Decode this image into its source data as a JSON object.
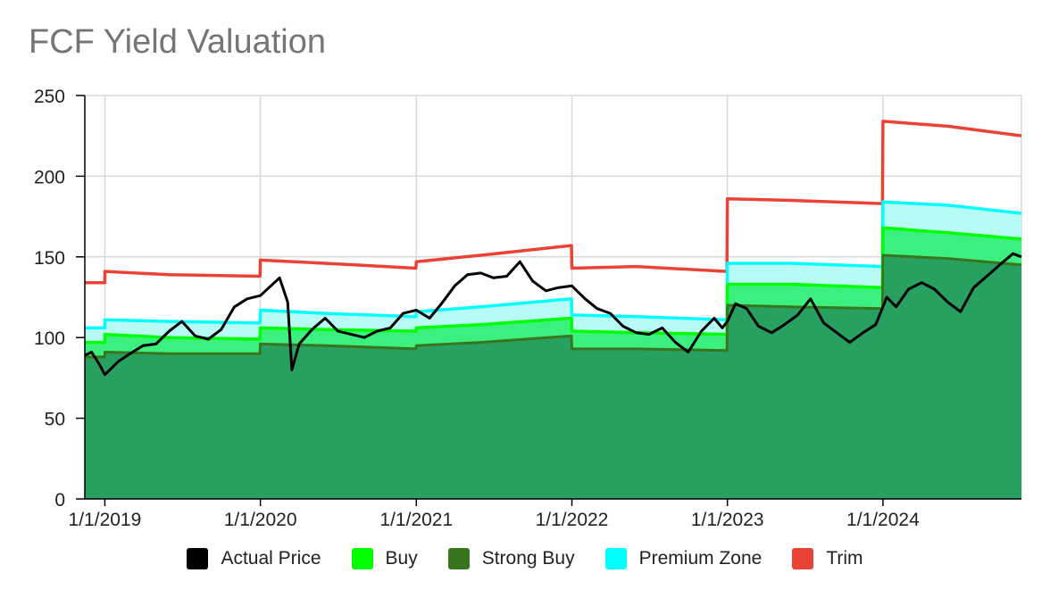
{
  "chart_data": {
    "type": "area",
    "title": "FCF Yield Valuation",
    "xlabel": "",
    "ylabel": "",
    "ylim": [
      0,
      250
    ],
    "yticks": [
      0,
      50,
      100,
      150,
      200,
      250
    ],
    "xlim": [
      "2018-11-15",
      "2024-11-21"
    ],
    "xticks": [
      "1/1/2019",
      "1/1/2020",
      "1/1/2021",
      "1/1/2022",
      "1/1/2023",
      "1/1/2024"
    ],
    "grid": true,
    "legend_position": "bottom",
    "colors": {
      "actual_price": "#000000",
      "buy": "#00ff00",
      "strong_buy": "#38761d",
      "premium_zone": "#00ffff",
      "trim": "#ea4335",
      "strong_buy_fill": "#27a060",
      "buy_fill": "#3cf07f",
      "premium_fill": "#b8fbf4"
    },
    "series": [
      {
        "name": "Trim",
        "key": "trim",
        "points": [
          [
            "2018-11-15",
            134
          ],
          [
            "2019-01-01",
            134
          ],
          [
            "2019-01-01",
            141
          ],
          [
            "2019-06-01",
            139
          ],
          [
            "2019-12-31",
            138
          ],
          [
            "2020-01-01",
            148
          ],
          [
            "2020-06-01",
            146
          ],
          [
            "2020-12-31",
            143
          ],
          [
            "2021-01-01",
            147
          ],
          [
            "2021-06-01",
            151
          ],
          [
            "2021-12-31",
            157
          ],
          [
            "2022-01-01",
            143
          ],
          [
            "2022-06-01",
            144
          ],
          [
            "2022-12-31",
            141
          ],
          [
            "2023-01-01",
            186
          ],
          [
            "2023-06-01",
            185
          ],
          [
            "2023-12-31",
            183
          ],
          [
            "2024-01-01",
            234
          ],
          [
            "2024-06-01",
            231
          ],
          [
            "2024-11-21",
            225
          ]
        ]
      },
      {
        "name": "Premium Zone",
        "key": "premium_zone",
        "points": [
          [
            "2018-11-15",
            106
          ],
          [
            "2019-01-01",
            106
          ],
          [
            "2019-01-01",
            111
          ],
          [
            "2019-06-01",
            110
          ],
          [
            "2019-12-31",
            109
          ],
          [
            "2020-01-01",
            117
          ],
          [
            "2020-06-01",
            115
          ],
          [
            "2020-12-31",
            113
          ],
          [
            "2021-01-01",
            116
          ],
          [
            "2021-06-01",
            119
          ],
          [
            "2021-12-31",
            124
          ],
          [
            "2022-01-01",
            114
          ],
          [
            "2022-06-01",
            113
          ],
          [
            "2022-12-31",
            111
          ],
          [
            "2023-01-01",
            146
          ],
          [
            "2023-06-01",
            146
          ],
          [
            "2023-12-31",
            144
          ],
          [
            "2024-01-01",
            184
          ],
          [
            "2024-06-01",
            182
          ],
          [
            "2024-11-21",
            177
          ]
        ]
      },
      {
        "name": "Buy",
        "key": "buy",
        "points": [
          [
            "2018-11-15",
            97
          ],
          [
            "2019-01-01",
            97
          ],
          [
            "2019-01-01",
            102
          ],
          [
            "2019-06-01",
            100
          ],
          [
            "2019-12-31",
            99
          ],
          [
            "2020-01-01",
            106
          ],
          [
            "2020-06-01",
            105
          ],
          [
            "2020-12-31",
            104
          ],
          [
            "2021-01-01",
            106
          ],
          [
            "2021-06-01",
            108
          ],
          [
            "2021-12-31",
            112
          ],
          [
            "2022-01-01",
            104
          ],
          [
            "2022-06-01",
            103
          ],
          [
            "2022-12-31",
            102
          ],
          [
            "2023-01-01",
            133
          ],
          [
            "2023-06-01",
            133
          ],
          [
            "2023-12-31",
            131
          ],
          [
            "2024-01-01",
            168
          ],
          [
            "2024-06-01",
            165
          ],
          [
            "2024-11-21",
            161
          ]
        ]
      },
      {
        "name": "Strong Buy",
        "key": "strong_buy",
        "points": [
          [
            "2018-11-15",
            88
          ],
          [
            "2019-01-01",
            88
          ],
          [
            "2019-01-01",
            91
          ],
          [
            "2019-06-01",
            90
          ],
          [
            "2019-12-31",
            90
          ],
          [
            "2020-01-01",
            96
          ],
          [
            "2020-06-01",
            95
          ],
          [
            "2020-12-31",
            93
          ],
          [
            "2021-01-01",
            95
          ],
          [
            "2021-06-01",
            97
          ],
          [
            "2021-12-31",
            101
          ],
          [
            "2022-01-01",
            93
          ],
          [
            "2022-06-01",
            93
          ],
          [
            "2022-12-31",
            92
          ],
          [
            "2023-01-01",
            120
          ],
          [
            "2023-06-01",
            119
          ],
          [
            "2023-12-31",
            118
          ],
          [
            "2024-01-01",
            151
          ],
          [
            "2024-06-01",
            149
          ],
          [
            "2024-11-21",
            145
          ]
        ]
      },
      {
        "name": "Actual Price",
        "key": "actual_price",
        "points": [
          [
            "2018-11-15",
            89
          ],
          [
            "2018-12-01",
            91
          ],
          [
            "2018-12-20",
            83
          ],
          [
            "2019-01-01",
            77
          ],
          [
            "2019-02-01",
            85
          ],
          [
            "2019-03-01",
            90
          ],
          [
            "2019-04-01",
            95
          ],
          [
            "2019-05-01",
            96
          ],
          [
            "2019-06-01",
            104
          ],
          [
            "2019-07-01",
            110
          ],
          [
            "2019-08-01",
            101
          ],
          [
            "2019-09-01",
            99
          ],
          [
            "2019-10-01",
            105
          ],
          [
            "2019-11-01",
            119
          ],
          [
            "2019-12-01",
            124
          ],
          [
            "2020-01-01",
            126
          ],
          [
            "2020-02-15",
            137
          ],
          [
            "2020-03-05",
            122
          ],
          [
            "2020-03-15",
            80
          ],
          [
            "2020-04-01",
            96
          ],
          [
            "2020-05-01",
            105
          ],
          [
            "2020-06-01",
            112
          ],
          [
            "2020-07-01",
            104
          ],
          [
            "2020-08-01",
            102
          ],
          [
            "2020-09-01",
            100
          ],
          [
            "2020-10-01",
            104
          ],
          [
            "2020-11-01",
            106
          ],
          [
            "2020-12-01",
            115
          ],
          [
            "2021-01-01",
            117
          ],
          [
            "2021-02-01",
            112
          ],
          [
            "2021-03-01",
            121
          ],
          [
            "2021-04-01",
            132
          ],
          [
            "2021-05-01",
            139
          ],
          [
            "2021-06-01",
            140
          ],
          [
            "2021-07-01",
            137
          ],
          [
            "2021-08-01",
            138
          ],
          [
            "2021-09-01",
            147
          ],
          [
            "2021-10-01",
            135
          ],
          [
            "2021-11-01",
            129
          ],
          [
            "2021-12-01",
            131
          ],
          [
            "2022-01-01",
            132
          ],
          [
            "2022-02-01",
            124
          ],
          [
            "2022-03-01",
            118
          ],
          [
            "2022-04-01",
            115
          ],
          [
            "2022-05-01",
            107
          ],
          [
            "2022-06-01",
            103
          ],
          [
            "2022-07-01",
            102
          ],
          [
            "2022-08-01",
            106
          ],
          [
            "2022-09-01",
            97
          ],
          [
            "2022-10-01",
            91
          ],
          [
            "2022-11-01",
            104
          ],
          [
            "2022-12-01",
            112
          ],
          [
            "2022-12-20",
            106
          ],
          [
            "2023-01-01",
            110
          ],
          [
            "2023-01-20",
            121
          ],
          [
            "2023-02-15",
            118
          ],
          [
            "2023-03-15",
            107
          ],
          [
            "2023-04-15",
            103
          ],
          [
            "2023-05-15",
            108
          ],
          [
            "2023-06-15",
            114
          ],
          [
            "2023-07-15",
            124
          ],
          [
            "2023-08-15",
            109
          ],
          [
            "2023-09-15",
            103
          ],
          [
            "2023-10-15",
            97
          ],
          [
            "2023-11-15",
            103
          ],
          [
            "2023-12-15",
            108
          ],
          [
            "2024-01-10",
            125
          ],
          [
            "2024-02-01",
            119
          ],
          [
            "2024-03-01",
            130
          ],
          [
            "2024-04-01",
            134
          ],
          [
            "2024-05-01",
            130
          ],
          [
            "2024-06-01",
            122
          ],
          [
            "2024-07-01",
            116
          ],
          [
            "2024-08-01",
            131
          ],
          [
            "2024-09-01",
            138
          ],
          [
            "2024-10-01",
            145
          ],
          [
            "2024-11-01",
            152
          ],
          [
            "2024-11-21",
            150
          ]
        ]
      }
    ],
    "legend": [
      {
        "label": "Actual Price",
        "key": "actual_price"
      },
      {
        "label": "Buy",
        "key": "buy"
      },
      {
        "label": "Strong Buy",
        "key": "strong_buy"
      },
      {
        "label": "Premium Zone",
        "key": "premium_zone"
      },
      {
        "label": "Trim",
        "key": "trim"
      }
    ]
  }
}
